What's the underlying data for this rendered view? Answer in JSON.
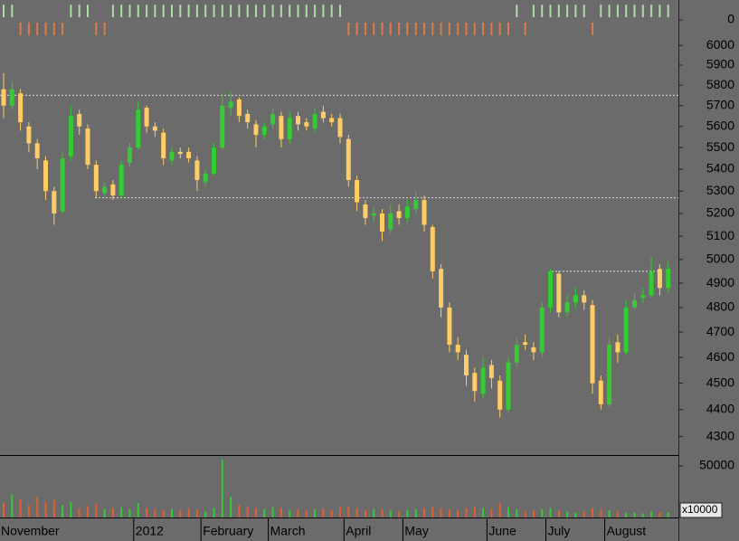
{
  "chart_data": [
    {
      "type": "bar",
      "up_color": "#a8e0a0",
      "down_color": "#e07a4a",
      "values": [
        1,
        1,
        -1,
        -1,
        -1,
        -1,
        -1,
        -1,
        1,
        1,
        1,
        -1,
        -1,
        1,
        1,
        1,
        1,
        1,
        1,
        1,
        1,
        1,
        1,
        1,
        1,
        1,
        1,
        1,
        1,
        1,
        1,
        1,
        1,
        1,
        1,
        1,
        1,
        1,
        1,
        1,
        1,
        -1,
        -1,
        -1,
        -1,
        -1,
        -1,
        -1,
        -1,
        -1,
        -1,
        -1,
        -1,
        -1,
        -1,
        -1,
        -1,
        -1,
        -1,
        -1,
        -1,
        1,
        -1,
        1,
        1,
        1,
        1,
        1,
        1,
        1,
        -1,
        1,
        1,
        1,
        1,
        1,
        1,
        1,
        1,
        1
      ],
      "ylim": [
        -1.3,
        1.3
      ],
      "yticks": [
        0
      ]
    },
    {
      "type": "candlestick",
      "log_scale": true,
      "up_color": "#33cc33",
      "down_color": "#ffcc66",
      "categories": [
        "November",
        null,
        null,
        null,
        null,
        null,
        null,
        null,
        null,
        null,
        null,
        null,
        null,
        null,
        null,
        null,
        "2012",
        null,
        null,
        null,
        null,
        null,
        null,
        null,
        "February",
        null,
        null,
        null,
        null,
        null,
        null,
        null,
        "March",
        null,
        null,
        null,
        null,
        null,
        null,
        null,
        null,
        "April",
        null,
        null,
        null,
        null,
        null,
        null,
        "May",
        null,
        null,
        null,
        null,
        null,
        null,
        null,
        null,
        null,
        "June",
        null,
        null,
        null,
        null,
        null,
        null,
        "July",
        null,
        null,
        null,
        null,
        null,
        null,
        "August",
        null,
        null,
        null,
        null,
        null,
        null,
        null
      ],
      "open": [
        5780,
        5700,
        5760,
        5600,
        5520,
        5440,
        5300,
        5210,
        5460,
        5660,
        5590,
        5420,
        5290,
        5330,
        5280,
        5430,
        5500,
        5690,
        5600,
        5570,
        5440,
        5480,
        5480,
        5440,
        5340,
        5380,
        5500,
        5690,
        5730,
        5660,
        5610,
        5560,
        5610,
        5650,
        5540,
        5650,
        5620,
        5590,
        5670,
        5640,
        5640,
        5540,
        5350,
        5240,
        5190,
        5200,
        5130,
        5210,
        5180,
        5220,
        5260,
        5140,
        4960,
        4800,
        4650,
        4610,
        4540,
        4460,
        4570,
        4510,
        4400,
        4580,
        4660,
        4640,
        4620,
        4800,
        4940,
        4780,
        4820,
        4850,
        4810,
        4510,
        4420,
        4660,
        4620,
        4800,
        4840,
        4850,
        4960,
        4880
      ],
      "high": [
        5860,
        5820,
        5780,
        5620,
        5540,
        5460,
        5320,
        5480,
        5700,
        5680,
        5610,
        5440,
        5340,
        5350,
        5440,
        5520,
        5720,
        5700,
        5620,
        5590,
        5500,
        5500,
        5500,
        5460,
        5400,
        5520,
        5760,
        5770,
        5740,
        5680,
        5630,
        5620,
        5690,
        5670,
        5670,
        5670,
        5640,
        5690,
        5700,
        5660,
        5660,
        5560,
        5370,
        5260,
        5230,
        5220,
        5240,
        5240,
        5260,
        5300,
        5280,
        5150,
        4980,
        4820,
        4680,
        4630,
        4560,
        4600,
        4590,
        4530,
        4600,
        4680,
        4690,
        4660,
        4820,
        4960,
        4950,
        4850,
        4880,
        4870,
        4830,
        4530,
        4680,
        4690,
        4830,
        4860,
        4880,
        5010,
        4980,
        4990
      ],
      "low": [
        5640,
        5680,
        5580,
        5480,
        5400,
        5260,
        5150,
        5200,
        5440,
        5560,
        5400,
        5270,
        5270,
        5260,
        5270,
        5410,
        5490,
        5570,
        5550,
        5420,
        5420,
        5450,
        5430,
        5300,
        5320,
        5370,
        5490,
        5650,
        5620,
        5590,
        5500,
        5540,
        5590,
        5500,
        5520,
        5580,
        5580,
        5570,
        5620,
        5600,
        5520,
        5320,
        5210,
        5150,
        5160,
        5080,
        5110,
        5150,
        5160,
        5200,
        5120,
        4920,
        4760,
        4620,
        4590,
        4490,
        4430,
        4440,
        4480,
        4370,
        4390,
        4560,
        4630,
        4590,
        4600,
        4780,
        4760,
        4760,
        4800,
        4790,
        4460,
        4400,
        4410,
        4580,
        4610,
        4790,
        4820,
        4840,
        4850,
        4860
      ],
      "close": [
        5700,
        5780,
        5620,
        5520,
        5450,
        5300,
        5200,
        5450,
        5650,
        5600,
        5420,
        5300,
        5320,
        5280,
        5420,
        5500,
        5680,
        5600,
        5580,
        5450,
        5480,
        5470,
        5450,
        5350,
        5380,
        5500,
        5700,
        5720,
        5650,
        5620,
        5560,
        5600,
        5660,
        5540,
        5640,
        5610,
        5600,
        5660,
        5640,
        5620,
        5550,
        5350,
        5250,
        5180,
        5200,
        5120,
        5200,
        5180,
        5230,
        5260,
        5150,
        4950,
        4800,
        4650,
        4620,
        4530,
        4470,
        4560,
        4520,
        4400,
        4580,
        4650,
        4650,
        4620,
        4800,
        4950,
        4780,
        4820,
        4850,
        4820,
        4500,
        4420,
        4650,
        4620,
        4800,
        4830,
        4850,
        4950,
        4880,
        4960
      ],
      "reference_lines": [
        5750,
        5270,
        4950
      ],
      "ylim": [
        4233,
        6094
      ],
      "yticks": [
        4300,
        4400,
        4500,
        4600,
        4700,
        4800,
        4900,
        5000,
        5100,
        5200,
        5300,
        5400,
        5500,
        5600,
        5700,
        5800,
        5900,
        6000
      ]
    },
    {
      "type": "bar",
      "up_color": "#33cc33",
      "down_color": "#e06030",
      "unit_label": "x10000",
      "values": [
        14000,
        22000,
        18000,
        12000,
        20000,
        15000,
        17000,
        12000,
        15000,
        9000,
        11000,
        13000,
        8000,
        9000,
        10000,
        8000,
        14000,
        9000,
        8000,
        7000,
        8000,
        7000,
        9000,
        8000,
        6000,
        9000,
        56000,
        20000,
        12000,
        10000,
        9000,
        8000,
        10000,
        9000,
        7000,
        8000,
        7000,
        8000,
        9000,
        7000,
        10000,
        11000,
        9000,
        7000,
        8000,
        8000,
        7000,
        6000,
        7000,
        8000,
        9000,
        10000,
        9000,
        8000,
        7000,
        9000,
        10000,
        9000,
        8000,
        14000,
        10000,
        8000,
        6000,
        7000,
        8000,
        9000,
        7000,
        6000,
        5000,
        6000,
        9000,
        8000,
        7000,
        6000,
        5000,
        5000,
        4000,
        6000,
        5000,
        5000
      ],
      "ylim": [
        0,
        58800
      ],
      "yticks": [
        50000
      ]
    }
  ]
}
